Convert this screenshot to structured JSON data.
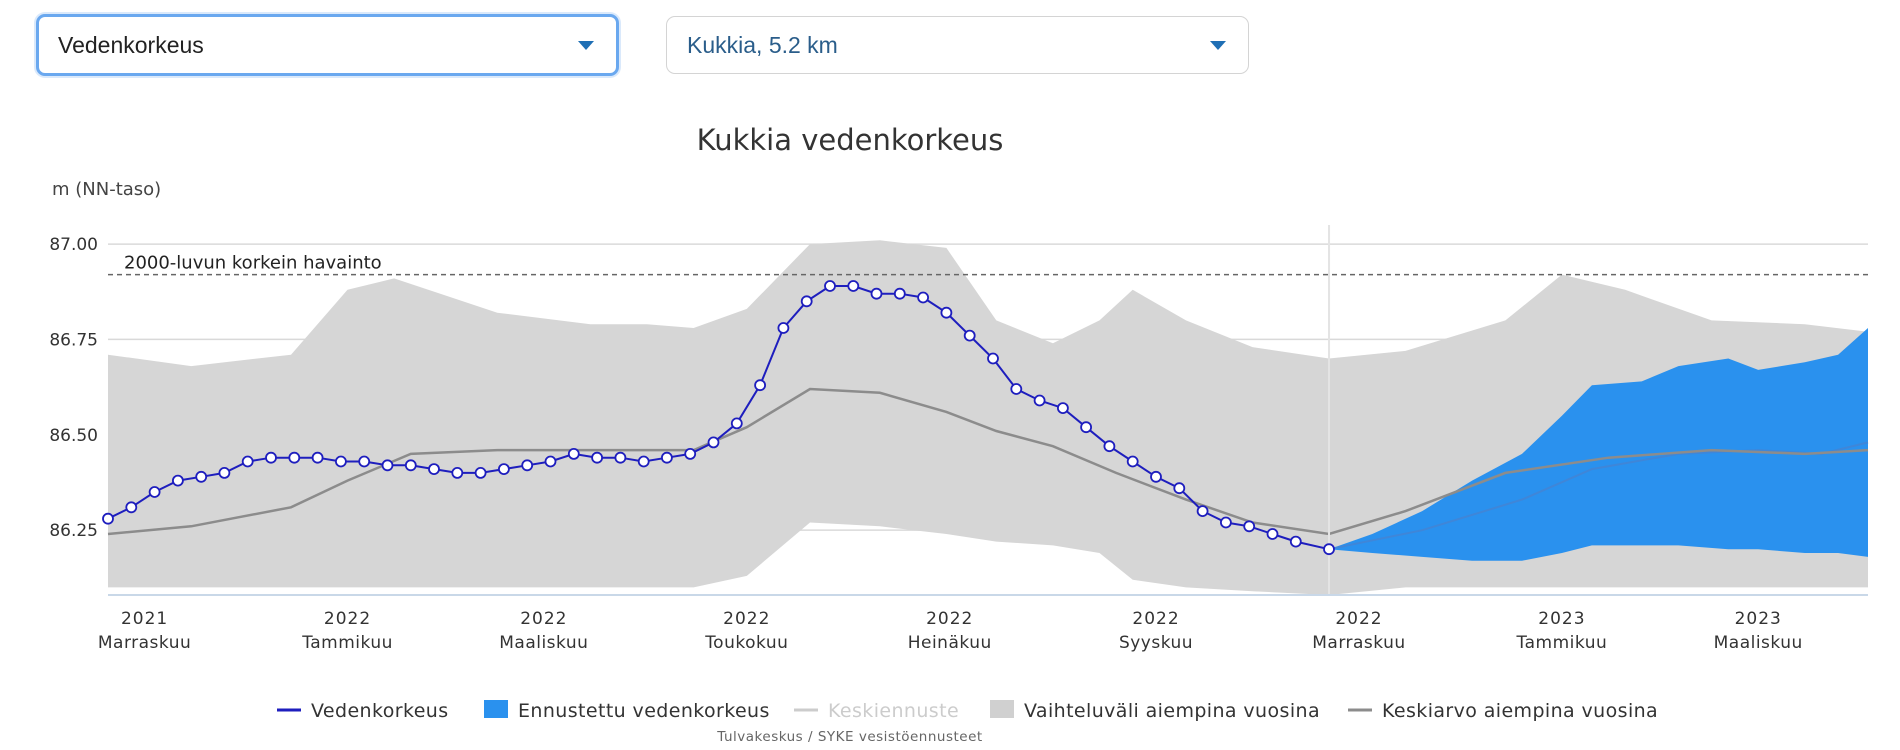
{
  "controls": {
    "measure_select": {
      "value": "Vedenkorkeus"
    },
    "station_select": {
      "value": "Kukkia, 5.2 km"
    }
  },
  "colors": {
    "observed": "#1e1ebe",
    "forecast": "#2a91ee",
    "range": "#d6d6d6",
    "average": "#8c8c8c",
    "median_forecast": "#cccccc"
  },
  "chart_data": {
    "type": "area",
    "title": "Kukkia vedenkorkeus",
    "ylabel": "m (NN-taso)",
    "xlabel": "",
    "ylim": [
      86.08,
      87.05
    ],
    "yticks": [
      86.25,
      86.5,
      86.75,
      87.0
    ],
    "ytick_labels": [
      "86.25",
      "86.50",
      "86.75",
      "87.00"
    ],
    "grid": true,
    "legend_position": "bottom",
    "x_domain": [
      "2021-10-21",
      "2023-04-03"
    ],
    "x_ticks": [
      {
        "date": "2021-11-01",
        "year": "2021",
        "month": "Marraskuu"
      },
      {
        "date": "2022-01-01",
        "year": "2022",
        "month": "Tammikuu"
      },
      {
        "date": "2022-03-01",
        "year": "2022",
        "month": "Maaliskuu"
      },
      {
        "date": "2022-05-01",
        "year": "2022",
        "month": "Toukokuu"
      },
      {
        "date": "2022-07-01",
        "year": "2022",
        "month": "Heinäkuu"
      },
      {
        "date": "2022-09-01",
        "year": "2022",
        "month": "Syyskuu"
      },
      {
        "date": "2022-11-01",
        "year": "2022",
        "month": "Marraskuu"
      },
      {
        "date": "2023-01-01",
        "year": "2023",
        "month": "Tammikuu"
      },
      {
        "date": "2023-03-01",
        "year": "2023",
        "month": "Maaliskuu"
      }
    ],
    "today": "2022-10-23",
    "reference_line": {
      "value": 86.92,
      "label": "2000-luvun korkein havainto"
    },
    "observed": [
      [
        "2021-10-21",
        86.28
      ],
      [
        "2021-10-28",
        86.31
      ],
      [
        "2021-11-04",
        86.35
      ],
      [
        "2021-11-11",
        86.38
      ],
      [
        "2021-11-18",
        86.39
      ],
      [
        "2021-11-25",
        86.4
      ],
      [
        "2021-12-02",
        86.43
      ],
      [
        "2021-12-09",
        86.44
      ],
      [
        "2021-12-16",
        86.44
      ],
      [
        "2021-12-23",
        86.44
      ],
      [
        "2021-12-30",
        86.43
      ],
      [
        "2022-01-06",
        86.43
      ],
      [
        "2022-01-13",
        86.42
      ],
      [
        "2022-01-20",
        86.42
      ],
      [
        "2022-01-27",
        86.41
      ],
      [
        "2022-02-03",
        86.4
      ],
      [
        "2022-02-10",
        86.4
      ],
      [
        "2022-02-17",
        86.41
      ],
      [
        "2022-02-24",
        86.42
      ],
      [
        "2022-03-03",
        86.43
      ],
      [
        "2022-03-10",
        86.45
      ],
      [
        "2022-03-17",
        86.44
      ],
      [
        "2022-03-24",
        86.44
      ],
      [
        "2022-03-31",
        86.43
      ],
      [
        "2022-04-07",
        86.44
      ],
      [
        "2022-04-14",
        86.45
      ],
      [
        "2022-04-21",
        86.48
      ],
      [
        "2022-04-28",
        86.53
      ],
      [
        "2022-05-05",
        86.63
      ],
      [
        "2022-05-12",
        86.78
      ],
      [
        "2022-05-19",
        86.85
      ],
      [
        "2022-05-26",
        86.89
      ],
      [
        "2022-06-02",
        86.89
      ],
      [
        "2022-06-09",
        86.87
      ],
      [
        "2022-06-16",
        86.87
      ],
      [
        "2022-06-23",
        86.86
      ],
      [
        "2022-06-30",
        86.82
      ],
      [
        "2022-07-07",
        86.76
      ],
      [
        "2022-07-14",
        86.7
      ],
      [
        "2022-07-21",
        86.62
      ],
      [
        "2022-07-28",
        86.59
      ],
      [
        "2022-08-04",
        86.57
      ],
      [
        "2022-08-11",
        86.52
      ],
      [
        "2022-08-18",
        86.47
      ],
      [
        "2022-08-25",
        86.43
      ],
      [
        "2022-09-01",
        86.39
      ],
      [
        "2022-09-08",
        86.36
      ],
      [
        "2022-09-15",
        86.3
      ],
      [
        "2022-09-22",
        86.27
      ],
      [
        "2022-09-29",
        86.26
      ],
      [
        "2022-10-06",
        86.24
      ],
      [
        "2022-10-13",
        86.22
      ],
      [
        "2022-10-23",
        86.2
      ]
    ],
    "range_historical": [
      [
        "2021-10-21",
        86.1,
        86.71
      ],
      [
        "2021-11-15",
        86.1,
        86.68
      ],
      [
        "2021-12-15",
        86.1,
        86.71
      ],
      [
        "2022-01-01",
        86.1,
        86.88
      ],
      [
        "2022-01-15",
        86.1,
        86.91
      ],
      [
        "2022-02-15",
        86.1,
        86.82
      ],
      [
        "2022-03-15",
        86.1,
        86.79
      ],
      [
        "2022-04-01",
        86.1,
        86.79
      ],
      [
        "2022-04-15",
        86.1,
        86.78
      ],
      [
        "2022-05-01",
        86.13,
        86.83
      ],
      [
        "2022-05-20",
        86.27,
        87.0
      ],
      [
        "2022-06-10",
        86.26,
        87.01
      ],
      [
        "2022-06-30",
        86.24,
        86.99
      ],
      [
        "2022-07-15",
        86.22,
        86.8
      ],
      [
        "2022-08-01",
        86.21,
        86.74
      ],
      [
        "2022-08-15",
        86.19,
        86.8
      ],
      [
        "2022-08-25",
        86.12,
        86.88
      ],
      [
        "2022-09-10",
        86.1,
        86.8
      ],
      [
        "2022-09-30",
        86.09,
        86.73
      ],
      [
        "2022-10-23",
        86.08,
        86.7
      ],
      [
        "2022-11-15",
        86.1,
        86.72
      ],
      [
        "2022-12-15",
        86.1,
        86.8
      ],
      [
        "2023-01-01",
        86.1,
        86.92
      ],
      [
        "2023-01-20",
        86.1,
        86.88
      ],
      [
        "2023-02-15",
        86.1,
        86.8
      ],
      [
        "2023-03-15",
        86.1,
        86.79
      ],
      [
        "2023-04-03",
        86.1,
        86.77
      ]
    ],
    "average_historical": [
      [
        "2021-10-21",
        86.24
      ],
      [
        "2021-11-15",
        86.26
      ],
      [
        "2021-12-15",
        86.31
      ],
      [
        "2022-01-01",
        86.38
      ],
      [
        "2022-01-20",
        86.45
      ],
      [
        "2022-02-15",
        86.46
      ],
      [
        "2022-03-15",
        86.46
      ],
      [
        "2022-04-15",
        86.46
      ],
      [
        "2022-05-01",
        86.52
      ],
      [
        "2022-05-20",
        86.62
      ],
      [
        "2022-06-10",
        86.61
      ],
      [
        "2022-06-30",
        86.56
      ],
      [
        "2022-07-15",
        86.51
      ],
      [
        "2022-08-01",
        86.47
      ],
      [
        "2022-08-20",
        86.4
      ],
      [
        "2022-09-10",
        86.33
      ],
      [
        "2022-09-30",
        86.27
      ],
      [
        "2022-10-23",
        86.24
      ],
      [
        "2022-11-15",
        86.3
      ],
      [
        "2022-12-15",
        86.4
      ],
      [
        "2023-01-15",
        86.44
      ],
      [
        "2023-02-15",
        86.46
      ],
      [
        "2023-03-15",
        86.45
      ],
      [
        "2023-04-03",
        86.46
      ]
    ],
    "forecast_range": [
      [
        "2022-10-23",
        86.2,
        86.2
      ],
      [
        "2022-11-05",
        86.19,
        86.24
      ],
      [
        "2022-11-20",
        86.18,
        86.3
      ],
      [
        "2022-12-05",
        86.17,
        86.38
      ],
      [
        "2022-12-20",
        86.17,
        86.45
      ],
      [
        "2023-01-01",
        86.19,
        86.55
      ],
      [
        "2023-01-10",
        86.21,
        86.63
      ],
      [
        "2023-01-25",
        86.21,
        86.64
      ],
      [
        "2023-02-05",
        86.21,
        86.68
      ],
      [
        "2023-02-20",
        86.2,
        86.7
      ],
      [
        "2023-03-01",
        86.2,
        86.67
      ],
      [
        "2023-03-15",
        86.19,
        86.69
      ],
      [
        "2023-03-25",
        86.19,
        86.71
      ],
      [
        "2023-04-03",
        86.18,
        86.78
      ]
    ],
    "forecast_median": [
      [
        "2022-10-23",
        86.2
      ],
      [
        "2022-11-20",
        86.25
      ],
      [
        "2022-12-20",
        86.33
      ],
      [
        "2023-01-10",
        86.41
      ],
      [
        "2023-02-05",
        86.45
      ],
      [
        "2023-03-01",
        86.46
      ],
      [
        "2023-03-20",
        86.45
      ],
      [
        "2023-04-03",
        86.48
      ]
    ],
    "legend": [
      {
        "label": "Vedenkorkeus",
        "kind": "line",
        "color": "#1e1ebe"
      },
      {
        "label": "Ennustettu vedenkorkeus",
        "kind": "box",
        "color": "#2a91ee"
      },
      {
        "label": "Keskiennuste",
        "kind": "line",
        "color": "#cccccc"
      },
      {
        "label": "Vaihteluväli aiempina vuosina",
        "kind": "box",
        "color": "#d0d0d0"
      },
      {
        "label": "Keskiarvo aiempina vuosina",
        "kind": "line",
        "color": "#8c8c8c"
      }
    ],
    "source": "Tulvakeskus / SYKE vesistöennusteet"
  }
}
